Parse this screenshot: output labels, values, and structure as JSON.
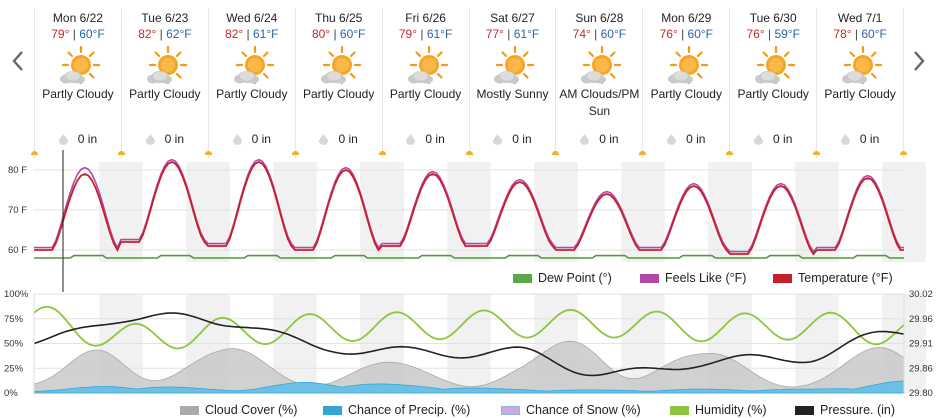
{
  "days": [
    {
      "name": "Mon 6/22",
      "hi": "79°",
      "lo": "60°F",
      "condition": "Partly Cloudy",
      "precip": "0 in"
    },
    {
      "name": "Tue 6/23",
      "hi": "82°",
      "lo": "62°F",
      "condition": "Partly Cloudy",
      "precip": "0 in"
    },
    {
      "name": "Wed 6/24",
      "hi": "82°",
      "lo": "61°F",
      "condition": "Partly Cloudy",
      "precip": "0 in"
    },
    {
      "name": "Thu 6/25",
      "hi": "80°",
      "lo": "60°F",
      "condition": "Partly Cloudy",
      "precip": "0 in"
    },
    {
      "name": "Fri 6/26",
      "hi": "79°",
      "lo": "61°F",
      "condition": "Partly Cloudy",
      "precip": "0 in"
    },
    {
      "name": "Sat 6/27",
      "hi": "77°",
      "lo": "61°F",
      "condition": "Mostly Sunny",
      "precip": "0 in"
    },
    {
      "name": "Sun 6/28",
      "hi": "74°",
      "lo": "60°F",
      "condition": "AM Clouds/PM Sun",
      "precip": "0 in"
    },
    {
      "name": "Mon 6/29",
      "hi": "76°",
      "lo": "60°F",
      "condition": "Partly Cloudy",
      "precip": "0 in"
    },
    {
      "name": "Tue 6/30",
      "hi": "76°",
      "lo": "59°F",
      "condition": "Partly Cloudy",
      "precip": "0 in"
    },
    {
      "name": "Wed 7/1",
      "hi": "78°",
      "lo": "60°F",
      "condition": "Partly Cloudy",
      "precip": "0 in"
    }
  ],
  "temp_chart": {
    "y_ticks": [
      "80 F",
      "70 F",
      "60 F"
    ],
    "legend": [
      {
        "label": "Dew Point (°)",
        "color": "#5aa84a"
      },
      {
        "label": "Feels Like (°F)",
        "color": "#b04aa8"
      },
      {
        "label": "Temperature (°F)",
        "color": "#c8202a"
      }
    ]
  },
  "misc_chart": {
    "y_left_ticks": [
      "100%",
      "75%",
      "50%",
      "25%",
      "0%"
    ],
    "y_right_ticks": [
      "30.02",
      "29.96",
      "29.91",
      "29.86",
      "29.80"
    ],
    "legend": [
      {
        "label": "Cloud Cover (%)",
        "color": "#aaaaaa"
      },
      {
        "label": "Chance of Precip. (%)",
        "color": "#33a6d6"
      },
      {
        "label": "Chance of Snow (%)",
        "color": "#b59ad6"
      },
      {
        "label": "Humidity (%)",
        "color": "#8cc63f"
      },
      {
        "label": "Pressure. (in)",
        "color": "#222222"
      }
    ]
  },
  "chart_data": [
    {
      "type": "line",
      "x": [
        "Mon 6/22",
        "Tue 6/23",
        "Wed 6/24",
        "Thu 6/25",
        "Fri 6/26",
        "Sat 6/27",
        "Sun 6/28",
        "Mon 6/29",
        "Tue 6/30",
        "Wed 7/1"
      ],
      "ylim": [
        57,
        82
      ],
      "series": [
        {
          "name": "Temperature (°F)",
          "daily_high": [
            79,
            82,
            82,
            80,
            79,
            77,
            74,
            76,
            76,
            78
          ],
          "daily_low": [
            60,
            62,
            61,
            60,
            61,
            61,
            60,
            60,
            59,
            60
          ]
        },
        {
          "name": "Feels Like (°F)",
          "daily_high": [
            80,
            82,
            82,
            80,
            79,
            77,
            74,
            76,
            76,
            78
          ],
          "daily_low": [
            60,
            62,
            61,
            60,
            61,
            61,
            60,
            60,
            59,
            60
          ]
        },
        {
          "name": "Dew Point (°)",
          "values": [
            58,
            58,
            58,
            58,
            58,
            58,
            58,
            58,
            58,
            58
          ]
        }
      ]
    },
    {
      "type": "area",
      "x": [
        "Mon 6/22",
        "Tue 6/23",
        "Wed 6/24",
        "Thu 6/25",
        "Fri 6/26",
        "Sat 6/27",
        "Sun 6/28",
        "Mon 6/29",
        "Tue 6/30",
        "Wed 7/1"
      ],
      "ylim": [
        0,
        100
      ],
      "y2lim": [
        29.8,
        30.02
      ],
      "series": [
        {
          "name": "Cloud Cover (%)",
          "values": [
            15,
            65,
            45,
            35,
            30,
            35,
            75,
            40,
            30,
            50
          ]
        },
        {
          "name": "Chance of Precip. (%)",
          "values": [
            3,
            8,
            4,
            12,
            8,
            4,
            3,
            4,
            4,
            12
          ]
        },
        {
          "name": "Humidity (%)",
          "values": [
            80,
            62,
            68,
            72,
            74,
            76,
            76,
            72,
            74,
            68
          ]
        },
        {
          "name": "Pressure. (in)",
          "values": [
            29.91,
            29.97,
            29.96,
            29.9,
            29.89,
            29.89,
            29.84,
            29.87,
            29.88,
            29.94
          ]
        }
      ]
    }
  ]
}
